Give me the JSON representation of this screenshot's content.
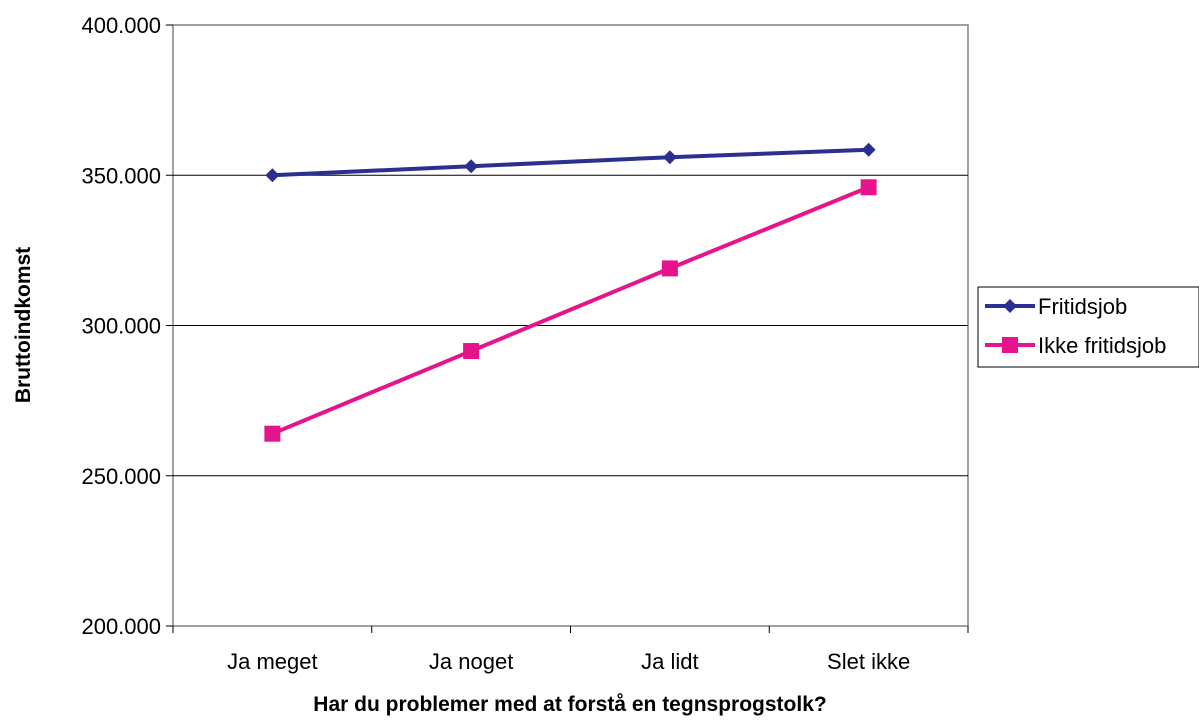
{
  "chart_data": {
    "type": "line",
    "title": "",
    "xlabel": "Har du problemer med at forstå en tegnsprogstolk?",
    "ylabel": "Bruttoindkomst",
    "categories": [
      "Ja meget",
      "Ja noget",
      "Ja lidt",
      "Slet ikke"
    ],
    "ylim": [
      200000,
      400000
    ],
    "yticks": [
      200000,
      250000,
      300000,
      350000,
      400000
    ],
    "ytick_labels": [
      "200.000",
      "250.000",
      "300.000",
      "350.000",
      "400.000"
    ],
    "grid": "horizontal",
    "legend_position": "right",
    "series": [
      {
        "name": "Fritidsjob",
        "marker": "diamond",
        "color": "#2B2F8F",
        "values": [
          350000,
          353000,
          356000,
          358500
        ]
      },
      {
        "name": "Ikke fritidsjob",
        "marker": "square",
        "color": "#E6148C",
        "values": [
          264000,
          291500,
          319000,
          346000
        ]
      }
    ]
  }
}
